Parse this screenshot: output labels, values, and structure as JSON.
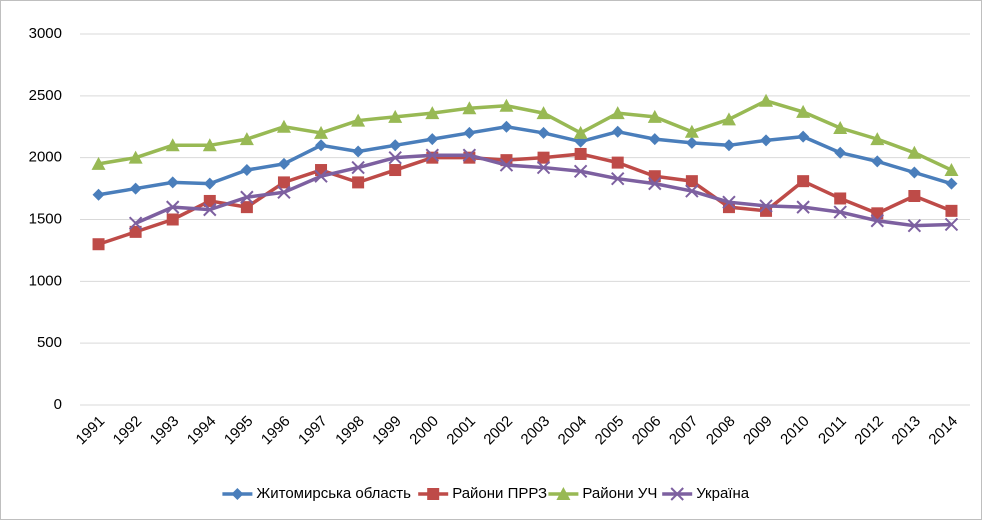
{
  "chart_data": {
    "type": "line",
    "categories": [
      "1991",
      "1992",
      "1993",
      "1994",
      "1995",
      "1996",
      "1997",
      "1998",
      "1999",
      "2000",
      "2001",
      "2002",
      "2003",
      "2004",
      "2005",
      "2006",
      "2007",
      "2008",
      "2009",
      "2010",
      "2011",
      "2012",
      "2013",
      "2014"
    ],
    "series": [
      {
        "name": "Житомирська область",
        "color": "#4a7ebb",
        "marker": "diamond",
        "values": [
          1700,
          1750,
          1800,
          1790,
          1900,
          1950,
          2100,
          2050,
          2100,
          2150,
          2200,
          2250,
          2200,
          2130,
          2210,
          2150,
          2120,
          2100,
          2140,
          2170,
          2040,
          1970,
          1880,
          1790
        ]
      },
      {
        "name": "Райони ПРРЗ",
        "color": "#be4b48",
        "marker": "square",
        "values": [
          1300,
          1400,
          1500,
          1650,
          1600,
          1800,
          1900,
          1800,
          1900,
          2000,
          2000,
          1980,
          2000,
          2030,
          1960,
          1850,
          1810,
          1600,
          1570,
          1810,
          1670,
          1550,
          1690,
          1570
        ]
      },
      {
        "name": "Райони УЧ",
        "color": "#98b954",
        "marker": "triangle",
        "values": [
          1950,
          2000,
          2100,
          2100,
          2150,
          2250,
          2200,
          2300,
          2330,
          2360,
          2400,
          2420,
          2360,
          2200,
          2360,
          2330,
          2210,
          2310,
          2460,
          2370,
          2240,
          2150,
          2040,
          1900
        ]
      },
      {
        "name": "Україна",
        "color": "#7d60a0",
        "marker": "x",
        "values": [
          null,
          1470,
          1600,
          1580,
          1680,
          1720,
          1850,
          1920,
          2000,
          2020,
          2020,
          1940,
          1920,
          1890,
          1830,
          1790,
          1730,
          1640,
          1610,
          1600,
          1560,
          1490,
          1450,
          1460
        ]
      }
    ],
    "ylim": [
      0,
      3000
    ],
    "yticks": [
      0,
      500,
      1000,
      1500,
      2000,
      2500,
      3000
    ],
    "grid": true,
    "legend": "bottom"
  }
}
